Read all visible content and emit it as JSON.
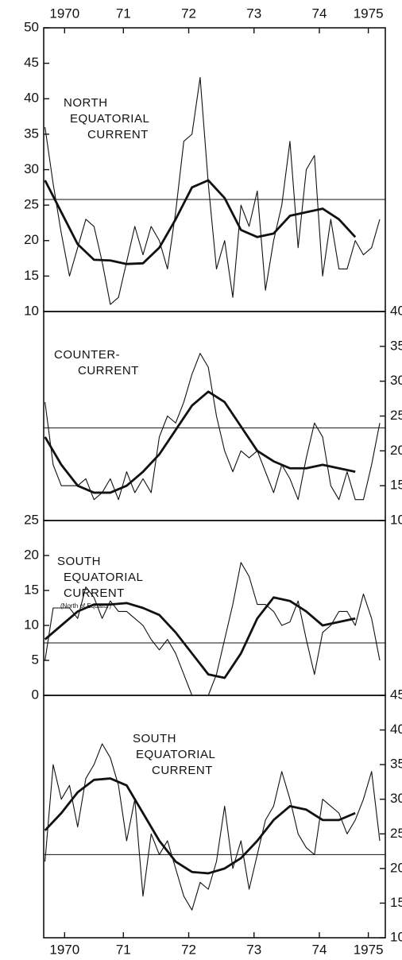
{
  "chart_data": [
    {
      "type": "line",
      "title": [
        "NORTH",
        "EQUATORIAL",
        "CURRENT"
      ],
      "axis_side": "left",
      "xaxis_side": "top",
      "xlim": [
        1970.23,
        1975.46
      ],
      "xticks": [
        {
          "value": 1970.55,
          "label": "1970"
        },
        {
          "value": 1971.45,
          "label": "71"
        },
        {
          "value": 1972.45,
          "label": "72"
        },
        {
          "value": 1973.45,
          "label": "73"
        },
        {
          "value": 1974.45,
          "label": "74"
        },
        {
          "value": 1975.2,
          "label": "1975"
        }
      ],
      "ylim": [
        10,
        50
      ],
      "yticks": [
        10,
        15,
        20,
        25,
        30,
        35,
        40,
        45,
        50
      ],
      "reference_line": 25.8,
      "series": [
        {
          "color": "#111111",
          "x": [
            1970.25,
            1970.375,
            1970.5,
            1970.625,
            1970.75,
            1970.875,
            1971,
            1971.125,
            1971.25,
            1971.375,
            1971.5,
            1971.625,
            1971.75,
            1971.875,
            1972,
            1972.125,
            1972.25,
            1972.375,
            1972.5,
            1972.625,
            1972.75,
            1972.875,
            1973,
            1973.125,
            1973.25,
            1973.375,
            1973.5,
            1973.625,
            1973.75,
            1973.875,
            1974,
            1974.125,
            1974.25,
            1974.375,
            1974.5,
            1974.625,
            1974.75,
            1974.875,
            1975,
            1975.125,
            1975.25,
            1975.375
          ],
          "values": [
            36,
            28,
            21,
            15,
            19,
            23,
            22,
            17,
            11,
            12,
            17,
            22,
            18,
            22,
            20,
            16,
            24,
            34,
            35,
            43,
            28,
            16,
            20,
            12,
            25,
            22,
            27,
            13,
            20,
            25,
            34,
            19,
            30,
            32,
            15,
            23,
            16,
            16,
            20,
            18,
            19,
            23
          ]
        },
        {
          "color": "#111111",
          "x": [
            1970.25,
            1970.5,
            1970.75,
            1971,
            1971.25,
            1971.5,
            1971.75,
            1972,
            1972.25,
            1972.5,
            1972.75,
            1973,
            1973.25,
            1973.5,
            1973.75,
            1974,
            1974.25,
            1974.5,
            1974.75,
            1975
          ],
          "values": [
            28.5,
            24,
            19.5,
            17.3,
            17.2,
            16.7,
            16.8,
            19,
            23,
            27.5,
            28.5,
            26,
            21.5,
            20.5,
            21,
            23.5,
            24,
            24.5,
            23,
            20.5
          ]
        }
      ]
    },
    {
      "type": "line",
      "title": [
        "COUNTER-",
        "CURRENT"
      ],
      "axis_side": "right",
      "xlim": [
        1970.23,
        1975.46
      ],
      "ylim": [
        10,
        40
      ],
      "yticks": [
        10,
        15,
        20,
        25,
        30,
        35,
        40
      ],
      "reference_line": 23.3,
      "series": [
        {
          "color": "#111111",
          "x": [
            1970.25,
            1970.375,
            1970.5,
            1970.625,
            1970.75,
            1970.875,
            1971,
            1971.125,
            1971.25,
            1971.375,
            1971.5,
            1971.625,
            1971.75,
            1971.875,
            1972,
            1972.125,
            1972.25,
            1972.375,
            1972.5,
            1972.625,
            1972.75,
            1972.875,
            1973,
            1973.125,
            1973.25,
            1973.375,
            1973.5,
            1973.625,
            1973.75,
            1973.875,
            1974,
            1974.125,
            1974.25,
            1974.375,
            1974.5,
            1974.625,
            1974.75,
            1974.875,
            1975,
            1975.125,
            1975.25,
            1975.375
          ],
          "values": [
            27,
            18,
            15,
            15,
            15,
            16,
            13,
            14,
            16,
            13,
            17,
            14,
            16,
            14,
            22,
            25,
            24,
            27,
            31,
            34,
            32,
            25,
            20,
            17,
            20,
            19,
            20,
            17,
            14,
            18,
            16,
            13,
            19,
            24,
            22,
            15,
            13,
            17,
            13,
            13,
            18,
            24
          ]
        },
        {
          "color": "#111111",
          "x": [
            1970.25,
            1970.5,
            1970.75,
            1971,
            1971.25,
            1971.5,
            1971.75,
            1972,
            1972.25,
            1972.5,
            1972.75,
            1973,
            1973.25,
            1973.5,
            1973.75,
            1974,
            1974.25,
            1974.5,
            1974.75,
            1975
          ],
          "values": [
            22,
            18,
            15,
            14,
            14,
            15,
            17,
            19.5,
            23,
            26.5,
            28.5,
            27,
            23.5,
            20,
            18.5,
            17.5,
            17.5,
            18,
            17.5,
            17
          ]
        }
      ]
    },
    {
      "type": "line",
      "title": [
        "SOUTH",
        "EQUATORIAL",
        "CURRENT"
      ],
      "subtitle": "(North of Equator)",
      "axis_side": "left",
      "xlim": [
        1970.23,
        1975.46
      ],
      "ylim": [
        0,
        25
      ],
      "yticks": [
        0,
        5,
        10,
        15,
        20,
        25
      ],
      "reference_line": 7.5,
      "series": [
        {
          "color": "#111111",
          "x": [
            1970.25,
            1970.375,
            1970.5,
            1970.625,
            1970.75,
            1970.875,
            1971,
            1971.125,
            1971.25,
            1971.375,
            1971.5,
            1971.625,
            1971.75,
            1971.875,
            1972,
            1972.125,
            1972.25,
            1972.375,
            1972.5,
            1972.625,
            1972.75,
            1972.875,
            1973,
            1973.125,
            1973.25,
            1973.375,
            1973.5,
            1973.625,
            1973.75,
            1973.875,
            1974,
            1974.125,
            1974.25,
            1974.375,
            1974.5,
            1974.625,
            1974.75,
            1974.875,
            1975,
            1975.125,
            1975.25,
            1975.375
          ],
          "values": [
            5,
            12.5,
            12.5,
            12.5,
            11,
            15.5,
            14,
            11,
            13.5,
            12,
            12,
            11,
            10,
            8,
            6.5,
            8,
            6,
            3,
            0,
            0,
            0,
            3,
            8,
            13,
            19,
            17,
            13,
            13,
            12,
            10,
            10.5,
            13.5,
            8,
            3,
            9,
            10,
            12,
            12,
            10,
            14.5,
            11,
            5
          ]
        },
        {
          "color": "#111111",
          "x": [
            1970.25,
            1970.5,
            1970.75,
            1971,
            1971.25,
            1971.5,
            1971.75,
            1972,
            1972.25,
            1972.5,
            1972.75,
            1973,
            1973.25,
            1973.5,
            1973.75,
            1974,
            1974.25,
            1974.5,
            1974.75,
            1975
          ],
          "values": [
            8,
            10,
            12,
            13,
            13,
            13.2,
            12.5,
            11.5,
            9,
            6,
            3,
            2.5,
            6,
            11,
            14,
            13.5,
            12,
            10,
            10.5,
            11
          ]
        }
      ]
    },
    {
      "type": "line",
      "title": [
        "SOUTH",
        "EQUATORIAL",
        "CURRENT"
      ],
      "axis_side": "right",
      "xaxis_side": "bottom",
      "xlim": [
        1970.23,
        1975.46
      ],
      "xticks": [
        {
          "value": 1970.55,
          "label": "1970"
        },
        {
          "value": 1971.45,
          "label": "71"
        },
        {
          "value": 1972.45,
          "label": "72"
        },
        {
          "value": 1973.45,
          "label": "73"
        },
        {
          "value": 1974.45,
          "label": "74"
        },
        {
          "value": 1975.2,
          "label": "1975"
        }
      ],
      "ylim": [
        10,
        45
      ],
      "yticks": [
        10,
        15,
        20,
        25,
        30,
        35,
        40,
        45
      ],
      "reference_line": 22,
      "series": [
        {
          "color": "#111111",
          "x": [
            1970.25,
            1970.375,
            1970.5,
            1970.625,
            1970.75,
            1970.875,
            1971,
            1971.125,
            1971.25,
            1971.375,
            1971.5,
            1971.625,
            1971.75,
            1971.875,
            1972,
            1972.125,
            1972.25,
            1972.375,
            1972.5,
            1972.625,
            1972.75,
            1972.875,
            1973,
            1973.125,
            1973.25,
            1973.375,
            1973.5,
            1973.625,
            1973.75,
            1973.875,
            1974,
            1974.125,
            1974.25,
            1974.375,
            1974.5,
            1974.625,
            1974.75,
            1974.875,
            1975,
            1975.125,
            1975.25,
            1975.375
          ],
          "values": [
            21,
            35,
            30,
            32,
            26,
            33,
            35,
            38,
            36,
            32,
            24,
            30,
            16,
            25,
            22,
            24,
            20,
            16,
            14,
            18,
            17,
            21,
            29,
            20,
            24,
            17,
            22,
            27,
            29,
            34,
            30,
            25,
            23,
            22,
            30,
            29,
            28,
            25,
            27,
            30,
            34,
            24
          ]
        },
        {
          "color": "#111111",
          "x": [
            1970.25,
            1970.5,
            1970.75,
            1971,
            1971.25,
            1971.5,
            1971.75,
            1972,
            1972.25,
            1972.5,
            1972.75,
            1973,
            1973.25,
            1973.5,
            1973.75,
            1974,
            1974.25,
            1974.5,
            1974.75,
            1975
          ],
          "values": [
            25.5,
            28,
            31,
            32.8,
            33,
            32,
            28,
            24,
            21,
            19.5,
            19.3,
            20,
            21.5,
            24,
            27,
            29,
            28.5,
            27,
            27,
            28
          ]
        }
      ]
    }
  ]
}
